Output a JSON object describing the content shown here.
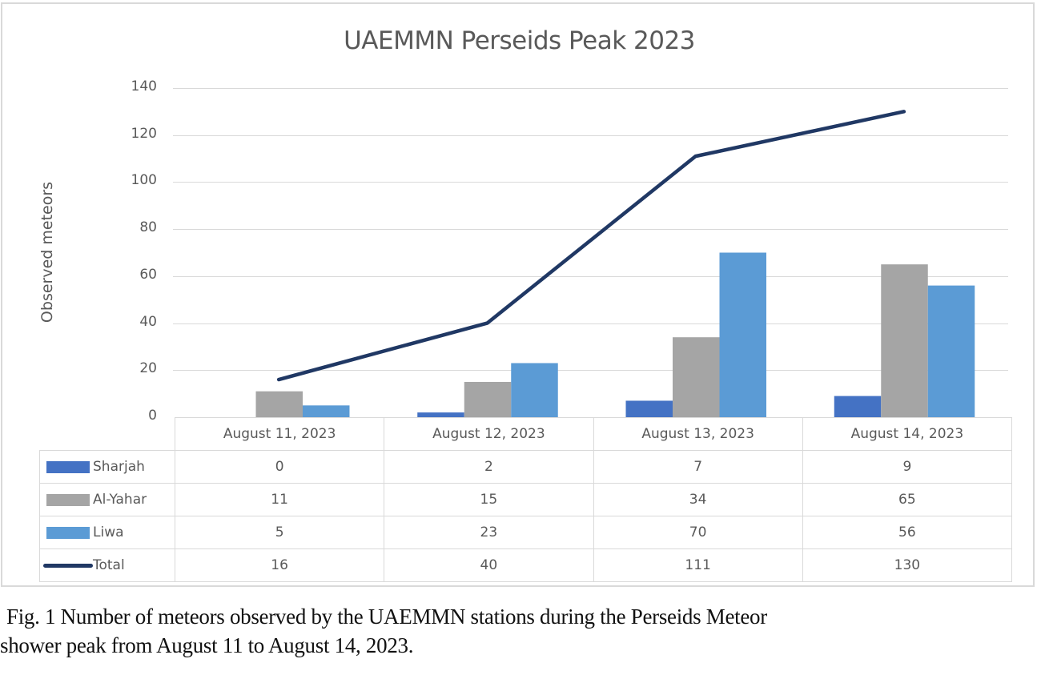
{
  "chart_data": {
    "type": "bar",
    "combo": "clustered bar + line with data table",
    "title": "UAEMMN Perseids Peak 2023",
    "xlabel": "",
    "ylabel": "Observed meteors",
    "ylim": [
      0,
      140
    ],
    "yticks": [
      0,
      20,
      40,
      60,
      80,
      100,
      120,
      140
    ],
    "grid": true,
    "legend_position": "data table (bottom)",
    "categories": [
      "August 11, 2023",
      "August 12, 2023",
      "August 13, 2023",
      "August 14, 2023"
    ],
    "series": [
      {
        "name": "Sharjah",
        "type": "bar",
        "color": "#4472C4",
        "values": [
          0,
          2,
          7,
          9
        ]
      },
      {
        "name": "Al-Yahar",
        "type": "bar",
        "color": "#A5A5A5",
        "values": [
          11,
          15,
          34,
          65
        ]
      },
      {
        "name": "Liwa",
        "type": "bar",
        "color": "#5B9BD5",
        "values": [
          5,
          23,
          70,
          56
        ]
      },
      {
        "name": "Total",
        "type": "line",
        "color": "#203864",
        "values": [
          16,
          40,
          111,
          130
        ]
      }
    ]
  },
  "caption": {
    "line1": "Fig. 1 Number of meteors observed by the UAEMMN stations during the Perseids Meteor",
    "line2": "shower peak from August 11 to August 14, 2023."
  }
}
